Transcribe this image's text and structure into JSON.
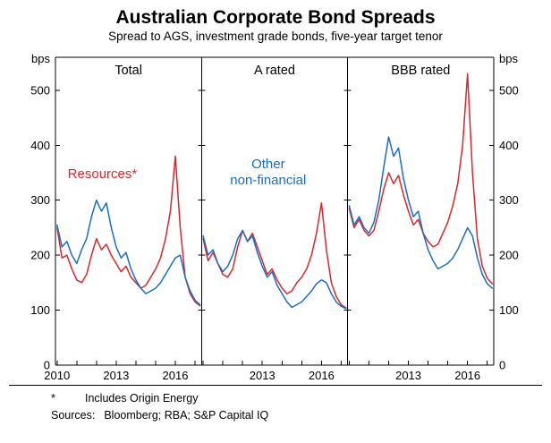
{
  "chart": {
    "title": "Australian Corporate Bond Spreads",
    "subtitle": "Spread to AGS, investment grade bonds, five-year target tenor",
    "unit_left": "bps",
    "unit_right": "bps"
  },
  "footnotes": {
    "marker": "*",
    "note": "Includes Origin Energy",
    "sources_label": "Sources:",
    "sources": "Bloomberg; RBA; S&P Capital IQ"
  },
  "chart_data": {
    "type": "line",
    "title": "Australian Corporate Bond Spreads",
    "subtitle": "Spread to AGS, investment grade bonds, five-year target tenor",
    "ylabel": "bps",
    "ylim": [
      0,
      560
    ],
    "yticks": [
      0,
      100,
      200,
      300,
      400,
      500
    ],
    "xlim": [
      2009.92,
      2017.33
    ],
    "grid": false,
    "legend_position": "in-panel annotations",
    "colors": {
      "resources": "#d4282e",
      "other": "#1b6cc2"
    },
    "x": [
      2010,
      2010.25,
      2010.5,
      2010.75,
      2011,
      2011.25,
      2011.5,
      2011.75,
      2012,
      2012.25,
      2012.5,
      2012.75,
      2013,
      2013.25,
      2013.5,
      2013.75,
      2014,
      2014.25,
      2014.5,
      2014.75,
      2015,
      2015.25,
      2015.5,
      2015.75,
      2016,
      2016.25,
      2016.5,
      2016.75,
      2017,
      2017.25
    ],
    "panels": [
      {
        "label": "Total",
        "xticklabels": [
          "2010",
          "2013",
          "2016"
        ],
        "series": [
          {
            "name": "Resources*",
            "color_key": "resources",
            "values": [
              250,
              195,
              200,
              175,
              155,
              150,
              165,
              200,
              230,
              210,
              220,
              200,
              185,
              170,
              180,
              160,
              150,
              140,
              145,
              160,
              175,
              195,
              230,
              280,
              380,
              250,
              160,
              130,
              115,
              108
            ]
          },
          {
            "name": "Other non-financial",
            "color_key": "other",
            "values": [
              255,
              215,
              225,
              200,
              185,
              210,
              230,
              270,
              300,
              280,
              295,
              250,
              215,
              195,
              205,
              175,
              155,
              140,
              130,
              135,
              140,
              150,
              165,
              180,
              195,
              200,
              160,
              135,
              118,
              110
            ]
          }
        ],
        "annotation": {
          "lines": [
            "Resources*"
          ],
          "x": 2012.3,
          "y": 340,
          "color": "resources"
        }
      },
      {
        "label": "A rated",
        "xticklabels": [
          "2013",
          "2016"
        ],
        "series": [
          {
            "name": "Resources*",
            "color_key": "resources",
            "values": [
              230,
              190,
              205,
              185,
              165,
              160,
              175,
              215,
              245,
              225,
              240,
              215,
              190,
              165,
              175,
              155,
              140,
              130,
              135,
              150,
              160,
              175,
              200,
              240,
              295,
              210,
              150,
              125,
              110,
              104
            ]
          },
          {
            "name": "Other non-financial",
            "color_key": "other",
            "values": [
              235,
              200,
              210,
              185,
              170,
              180,
              200,
              230,
              245,
              225,
              235,
              205,
              180,
              160,
              170,
              145,
              130,
              115,
              105,
              110,
              115,
              125,
              135,
              148,
              155,
              150,
              130,
              115,
              107,
              103
            ]
          }
        ],
        "annotation": {
          "lines": [
            "Other",
            "non-financial"
          ],
          "x": 2013.3,
          "y": 358,
          "color": "other"
        }
      },
      {
        "label": "BBB rated",
        "xticklabels": [
          "2013",
          "2016"
        ],
        "series": [
          {
            "name": "Resources*",
            "color_key": "resources",
            "values": [
              285,
              250,
              265,
              245,
              235,
              245,
              280,
              320,
              350,
              330,
              345,
              310,
              280,
              255,
              265,
              240,
              225,
              215,
              220,
              240,
              260,
              290,
              330,
              400,
              530,
              350,
              230,
              180,
              158,
              148
            ]
          },
          {
            "name": "Other non-financial",
            "color_key": "other",
            "values": [
              290,
              255,
              270,
              250,
              240,
              260,
              300,
              360,
              415,
              380,
              395,
              340,
              300,
              270,
              280,
              240,
              210,
              190,
              175,
              180,
              185,
              195,
              210,
              230,
              250,
              235,
              195,
              165,
              148,
              140
            ]
          }
        ],
        "annotation": null
      }
    ]
  }
}
